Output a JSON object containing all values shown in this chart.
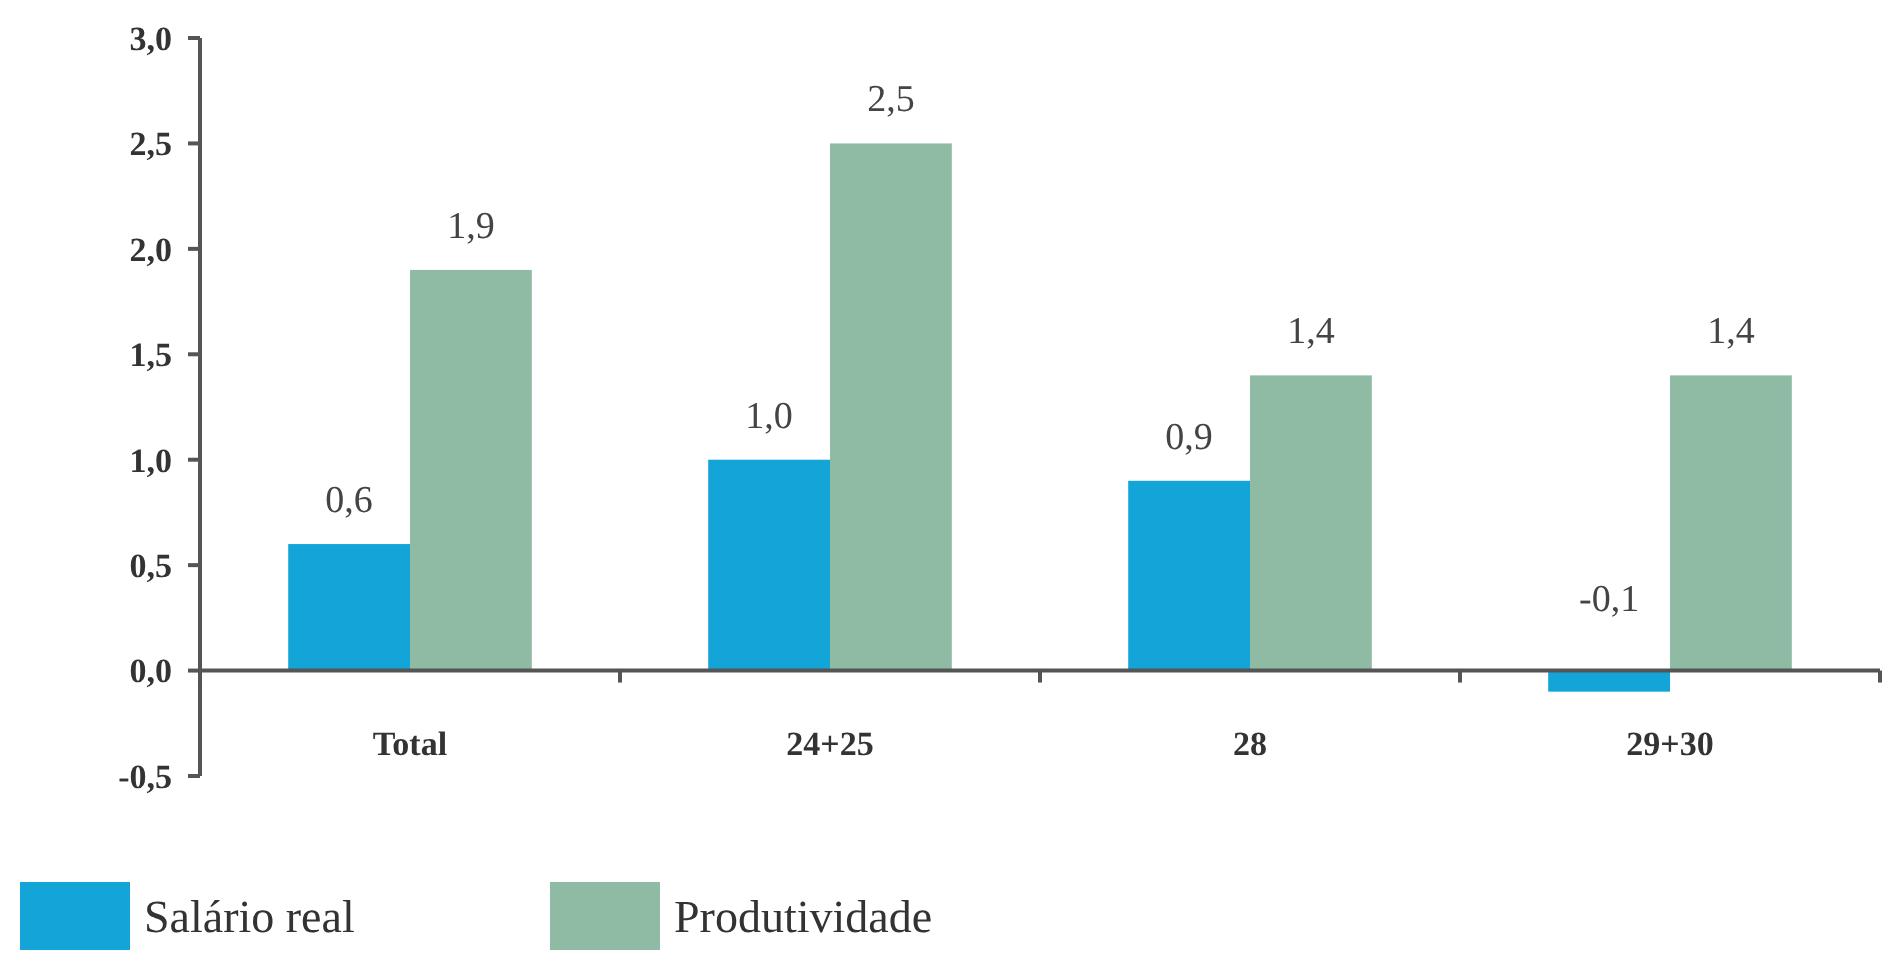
{
  "chart_data": {
    "type": "bar",
    "categories": [
      "Total",
      "24+25",
      "28",
      "29+30"
    ],
    "series": [
      {
        "name": "Salário real",
        "color": "#14a5d8",
        "values": [
          0.6,
          1.0,
          0.9,
          -0.1
        ],
        "value_labels": [
          "0,6",
          "1,0",
          "0,9",
          "-0,1"
        ]
      },
      {
        "name": "Produtividade",
        "color": "#8fbba5",
        "values": [
          1.9,
          2.5,
          1.4,
          1.4
        ],
        "value_labels": [
          "1,9",
          "2,5",
          "1,4",
          "1,4"
        ]
      }
    ],
    "ylim": [
      -0.5,
      3.0
    ],
    "yticks": [
      {
        "value": -0.5,
        "label": "-0,5"
      },
      {
        "value": 0,
        "label": "0,0"
      },
      {
        "value": 0.5,
        "label": "0,5"
      },
      {
        "value": 1,
        "label": "1,0"
      },
      {
        "value": 1.5,
        "label": "1,5"
      },
      {
        "value": 2,
        "label": "2,0"
      },
      {
        "value": 2.5,
        "label": "2,5"
      },
      {
        "value": 3,
        "label": "3,0"
      }
    ],
    "grid": false,
    "legend": "bottom left"
  }
}
